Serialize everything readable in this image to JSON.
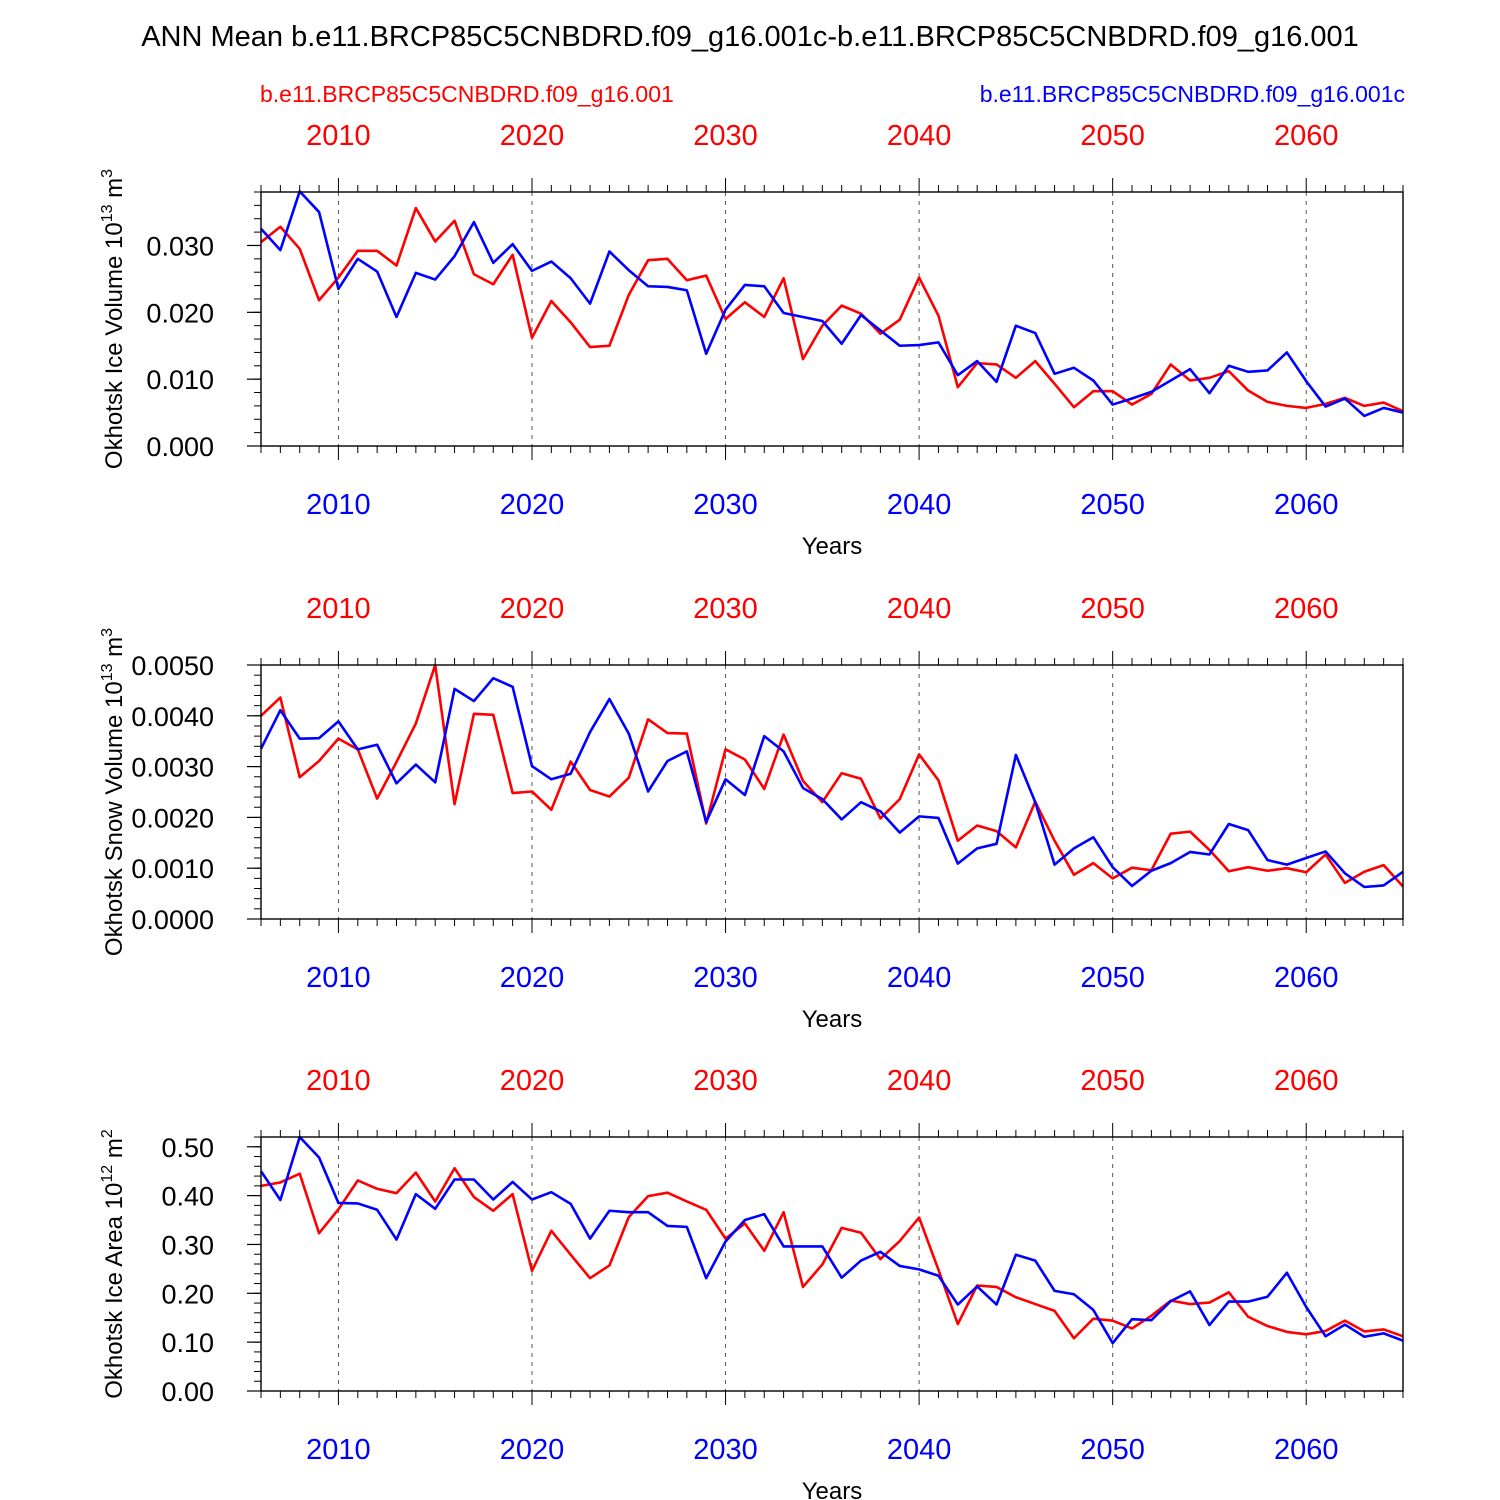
{
  "title": "ANN Mean b.e11.BRCP85C5CNBDRD.f09_g16.001c-b.e11.BRCP85C5CNBDRD.f09_g16.001",
  "legend": {
    "red_label": "b.e11.BRCP85C5CNBDRD.f09_g16.001",
    "blue_label": "b.e11.BRCP85C5CNBDRD.f09_g16.001c"
  },
  "colors": {
    "red": "#ff0000",
    "blue": "#0000ff",
    "axis": "#000000",
    "grid": "#555555"
  },
  "chart_data": [
    {
      "type": "line",
      "ylabel": "Okhotsk Ice Volume",
      "unit_exponent": "13",
      "unit_base": "m",
      "unit_power": "3",
      "xlabel": "Years",
      "xlim": [
        2006,
        2065
      ],
      "ylim": [
        0,
        0.038
      ],
      "yticks": [
        0,
        0.01,
        0.02,
        0.03
      ],
      "ytick_labels": [
        "0.000",
        "0.010",
        "0.020",
        "0.030"
      ],
      "yminor_step": 0.002,
      "xticks": [
        2010,
        2020,
        2030,
        2040,
        2050,
        2060
      ],
      "xtick_labels": [
        "2010",
        "2020",
        "2030",
        "2040",
        "2050",
        "2060"
      ],
      "x_start": 2006,
      "series": [
        {
          "name": "b.e11.BRCP85C5CNBDRD.f09_g16.001",
          "color": "red",
          "values": [
            0.0305,
            0.0328,
            0.0295,
            0.0218,
            0.0252,
            0.0292,
            0.0292,
            0.027,
            0.0356,
            0.0306,
            0.0337,
            0.0257,
            0.0242,
            0.0286,
            0.0162,
            0.0217,
            0.0185,
            0.0148,
            0.015,
            0.0226,
            0.0278,
            0.028,
            0.0248,
            0.0255,
            0.019,
            0.0215,
            0.0193,
            0.0251,
            0.013,
            0.018,
            0.021,
            0.0198,
            0.0168,
            0.0189,
            0.0252,
            0.0195,
            0.0088,
            0.0124,
            0.0122,
            0.0102,
            0.0127,
            0.0093,
            0.0058,
            0.0082,
            0.0082,
            0.0062,
            0.0078,
            0.0122,
            0.0098,
            0.0102,
            0.0112,
            0.0083,
            0.0066,
            0.006,
            0.0057,
            0.0063,
            0.0072,
            0.006,
            0.0065,
            0.0052
          ]
        },
        {
          "name": "b.e11.BRCP85C5CNBDRD.f09_g16.001c",
          "color": "blue",
          "values": [
            0.0325,
            0.0293,
            0.0381,
            0.035,
            0.0235,
            0.028,
            0.0261,
            0.0193,
            0.0259,
            0.0249,
            0.0284,
            0.0335,
            0.0274,
            0.0302,
            0.0262,
            0.0276,
            0.0251,
            0.0213,
            0.0291,
            0.0263,
            0.0239,
            0.0238,
            0.0233,
            0.0138,
            0.0204,
            0.0241,
            0.0239,
            0.0199,
            0.0193,
            0.0187,
            0.0153,
            0.0196,
            0.0173,
            0.015,
            0.0151,
            0.0155,
            0.0106,
            0.0127,
            0.0096,
            0.018,
            0.0169,
            0.0108,
            0.0117,
            0.0098,
            0.0062,
            0.0071,
            0.0081,
            0.0098,
            0.0115,
            0.0079,
            0.012,
            0.0111,
            0.0113,
            0.014,
            0.0097,
            0.0059,
            0.0071,
            0.0045,
            0.0057,
            0.005
          ]
        }
      ]
    },
    {
      "type": "line",
      "ylabel": "Okhotsk Snow Volume",
      "unit_exponent": "13",
      "unit_base": "m",
      "unit_power": "3",
      "xlabel": "Years",
      "xlim": [
        2006,
        2065
      ],
      "ylim": [
        0,
        0.005
      ],
      "yticks": [
        0,
        0.001,
        0.002,
        0.003,
        0.004,
        0.005
      ],
      "ytick_labels": [
        "0.0000",
        "0.0010",
        "0.0020",
        "0.0030",
        "0.0040",
        "0.0050"
      ],
      "yminor_step": 0.0002,
      "xticks": [
        2010,
        2020,
        2030,
        2040,
        2050,
        2060
      ],
      "xtick_labels": [
        "2010",
        "2020",
        "2030",
        "2040",
        "2050",
        "2060"
      ],
      "x_start": 2006,
      "series": [
        {
          "name": "b.e11.BRCP85C5CNBDRD.f09_g16.001",
          "color": "red",
          "values": [
            0.004,
            0.00436,
            0.00279,
            0.00311,
            0.00355,
            0.00334,
            0.00237,
            0.00309,
            0.00385,
            0.005,
            0.00226,
            0.00404,
            0.00402,
            0.00248,
            0.00251,
            0.00215,
            0.0031,
            0.00254,
            0.00241,
            0.00278,
            0.00393,
            0.00366,
            0.00365,
            0.00188,
            0.00334,
            0.00314,
            0.00256,
            0.00363,
            0.00272,
            0.0023,
            0.00287,
            0.00276,
            0.00198,
            0.00236,
            0.00324,
            0.00273,
            0.00154,
            0.00184,
            0.00173,
            0.00141,
            0.00231,
            0.00154,
            0.00087,
            0.0011,
            0.0008,
            0.00101,
            0.00096,
            0.00168,
            0.00172,
            0.00136,
            0.00094,
            0.00102,
            0.00095,
            0.001,
            0.00092,
            0.00127,
            0.00071,
            0.00093,
            0.00106,
            0.00064
          ]
        },
        {
          "name": "b.e11.BRCP85C5CNBDRD.f09_g16.001c",
          "color": "blue",
          "values": [
            0.00335,
            0.00411,
            0.00355,
            0.00356,
            0.00389,
            0.00334,
            0.00343,
            0.00267,
            0.00304,
            0.00269,
            0.00453,
            0.00429,
            0.00474,
            0.00457,
            0.00301,
            0.00275,
            0.00286,
            0.00368,
            0.00433,
            0.00365,
            0.00251,
            0.00311,
            0.0033,
            0.00191,
            0.00275,
            0.00244,
            0.0036,
            0.0033,
            0.00258,
            0.00236,
            0.00196,
            0.0023,
            0.00212,
            0.0017,
            0.00202,
            0.00199,
            0.00109,
            0.00139,
            0.00148,
            0.00323,
            0.0023,
            0.00107,
            0.00139,
            0.00161,
            0.00102,
            0.00065,
            0.00095,
            0.0011,
            0.00132,
            0.00127,
            0.00187,
            0.00175,
            0.00116,
            0.00107,
            0.0012,
            0.00133,
            0.0009,
            0.00063,
            0.00066,
            0.00093
          ]
        }
      ]
    },
    {
      "type": "line",
      "ylabel": "Okhotsk Ice Area",
      "unit_exponent": "12",
      "unit_base": "m",
      "unit_power": "2",
      "xlabel": "Years",
      "xlim": [
        2006,
        2065
      ],
      "ylim": [
        0,
        0.52
      ],
      "yticks": [
        0,
        0.1,
        0.2,
        0.3,
        0.4,
        0.5
      ],
      "ytick_labels": [
        "0.00",
        "0.10",
        "0.20",
        "0.30",
        "0.40",
        "0.50"
      ],
      "yminor_step": 0.02,
      "xticks": [
        2010,
        2020,
        2030,
        2040,
        2050,
        2060
      ],
      "xtick_labels": [
        "2010",
        "2020",
        "2030",
        "2040",
        "2050",
        "2060"
      ],
      "x_start": 2006,
      "series": [
        {
          "name": "b.e11.BRCP85C5CNBDRD.f09_g16.001",
          "color": "red",
          "values": [
            0.42,
            0.427,
            0.445,
            0.323,
            0.372,
            0.431,
            0.414,
            0.405,
            0.447,
            0.388,
            0.456,
            0.397,
            0.369,
            0.403,
            0.246,
            0.328,
            0.279,
            0.231,
            0.257,
            0.356,
            0.399,
            0.406,
            0.388,
            0.371,
            0.312,
            0.343,
            0.287,
            0.366,
            0.213,
            0.259,
            0.334,
            0.324,
            0.27,
            0.307,
            0.355,
            0.248,
            0.137,
            0.216,
            0.213,
            0.192,
            0.178,
            0.164,
            0.108,
            0.148,
            0.144,
            0.128,
            0.154,
            0.185,
            0.178,
            0.181,
            0.202,
            0.152,
            0.133,
            0.121,
            0.116,
            0.123,
            0.144,
            0.122,
            0.126,
            0.112
          ]
        },
        {
          "name": "b.e11.BRCP85C5CNBDRD.f09_g16.001c",
          "color": "blue",
          "values": [
            0.45,
            0.391,
            0.52,
            0.478,
            0.385,
            0.384,
            0.371,
            0.31,
            0.403,
            0.373,
            0.433,
            0.433,
            0.392,
            0.428,
            0.392,
            0.407,
            0.383,
            0.312,
            0.369,
            0.366,
            0.366,
            0.338,
            0.336,
            0.231,
            0.306,
            0.35,
            0.362,
            0.296,
            0.296,
            0.296,
            0.232,
            0.267,
            0.285,
            0.256,
            0.249,
            0.236,
            0.177,
            0.214,
            0.177,
            0.279,
            0.267,
            0.205,
            0.198,
            0.166,
            0.098,
            0.147,
            0.145,
            0.184,
            0.204,
            0.135,
            0.183,
            0.183,
            0.193,
            0.242,
            0.172,
            0.112,
            0.136,
            0.111,
            0.118,
            0.103
          ]
        }
      ]
    }
  ]
}
